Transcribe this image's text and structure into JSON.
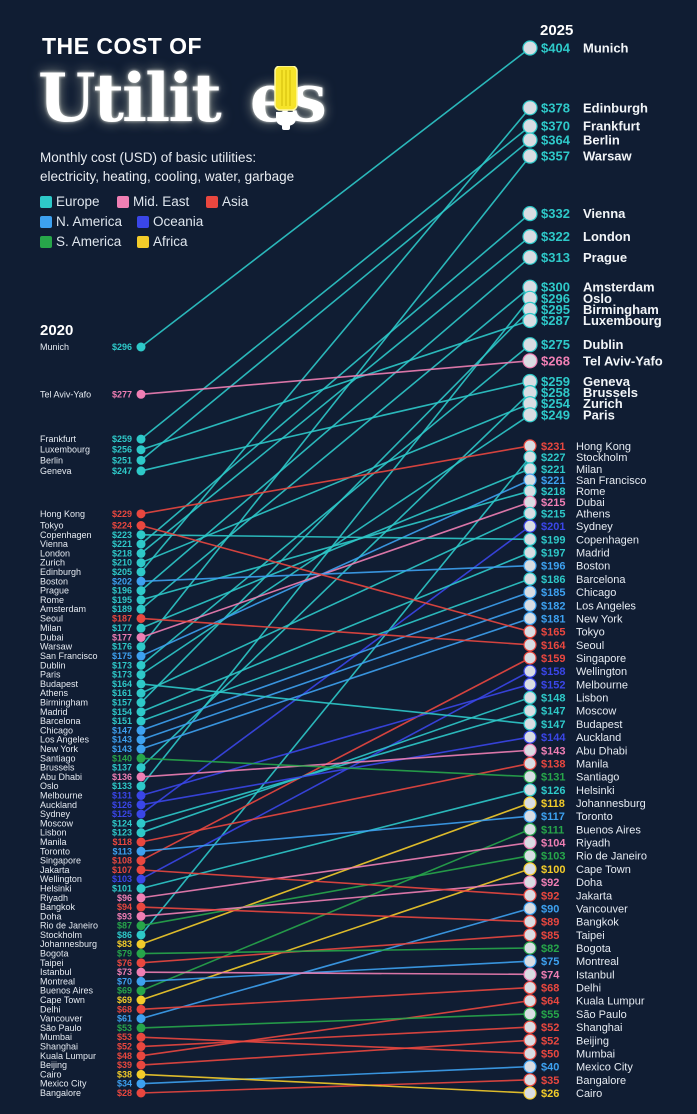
{
  "header": {
    "title_line1": "THE COST OF",
    "title_line2_a": "Utilit",
    "title_line2_b": "es",
    "subtitle_line1": "Monthly cost (USD) of basic utilities:",
    "subtitle_line2": "electricity, heating, cooling, water, garbage"
  },
  "legend": [
    {
      "label": "Europe",
      "key": "Europe"
    },
    {
      "label": "Mid. East",
      "key": "MidEast"
    },
    {
      "label": "Asia",
      "key": "Asia"
    },
    {
      "label": "N. America",
      "key": "NAmerica"
    },
    {
      "label": "Oceania",
      "key": "Oceania"
    },
    {
      "label": "S. America",
      "key": "SAmerica"
    },
    {
      "label": "Africa",
      "key": "Africa"
    }
  ],
  "colors": {
    "Europe": "#2ec9c9",
    "MidEast": "#f07fb4",
    "Asia": "#e9473f",
    "NAmerica": "#3da1f0",
    "Oceania": "#3a46e8",
    "SAmerica": "#27a64a",
    "Africa": "#f3cc2a",
    "background": "#101d33"
  },
  "chart_data": {
    "type": "slope",
    "title": "The Cost of Utilities",
    "subtitle": "Monthly cost (USD) of basic utilities: electricity, heating, cooling, water, garbage",
    "left_label": "2020",
    "right_label": "2025",
    "unit": "$",
    "series": [
      {
        "city": "Munich",
        "region": "Europe",
        "v2020": 296,
        "v2025": 404
      },
      {
        "city": "Edinburgh",
        "region": "Europe",
        "v2020": 205,
        "v2025": 378
      },
      {
        "city": "Frankfurt",
        "region": "Europe",
        "v2020": 259,
        "v2025": 370
      },
      {
        "city": "Berlin",
        "region": "Europe",
        "v2020": 251,
        "v2025": 364
      },
      {
        "city": "Warsaw",
        "region": "Europe",
        "v2020": 176,
        "v2025": 357
      },
      {
        "city": "Vienna",
        "region": "Europe",
        "v2020": 221,
        "v2025": 332
      },
      {
        "city": "London",
        "region": "Europe",
        "v2020": 218,
        "v2025": 322
      },
      {
        "city": "Prague",
        "region": "Europe",
        "v2020": 196,
        "v2025": 313
      },
      {
        "city": "Amsterdam",
        "region": "Europe",
        "v2020": 189,
        "v2025": 300
      },
      {
        "city": "Oslo",
        "region": "Europe",
        "v2020": 133,
        "v2025": 296
      },
      {
        "city": "Birmingham",
        "region": "Europe",
        "v2020": 157,
        "v2025": 295
      },
      {
        "city": "Luxembourg",
        "region": "Europe",
        "v2020": 256,
        "v2025": 287
      },
      {
        "city": "Dublin",
        "region": "Europe",
        "v2020": 173,
        "v2025": 275
      },
      {
        "city": "Tel Aviv-Yafo",
        "region": "MidEast",
        "v2020": 277,
        "v2025": 268
      },
      {
        "city": "Geneva",
        "region": "Europe",
        "v2020": 247,
        "v2025": 259
      },
      {
        "city": "Brussels",
        "region": "Europe",
        "v2020": 137,
        "v2025": 258
      },
      {
        "city": "Zurich",
        "region": "Europe",
        "v2020": 210,
        "v2025": 254
      },
      {
        "city": "Paris",
        "region": "Europe",
        "v2020": 173,
        "v2025": 249
      },
      {
        "city": "Hong Kong",
        "region": "Asia",
        "v2020": 229,
        "v2025": 231
      },
      {
        "city": "Stockholm",
        "region": "Europe",
        "v2020": 86,
        "v2025": 227
      },
      {
        "city": "Milan",
        "region": "Europe",
        "v2020": 177,
        "v2025": 221
      },
      {
        "city": "San Francisco",
        "region": "NAmerica",
        "v2020": 175,
        "v2025": 221
      },
      {
        "city": "Rome",
        "region": "Europe",
        "v2020": 195,
        "v2025": 218
      },
      {
        "city": "Dubai",
        "region": "MidEast",
        "v2020": 177,
        "v2025": 215
      },
      {
        "city": "Athens",
        "region": "Europe",
        "v2020": 161,
        "v2025": 215
      },
      {
        "city": "Sydney",
        "region": "Oceania",
        "v2020": 125,
        "v2025": 201
      },
      {
        "city": "Copenhagen",
        "region": "Europe",
        "v2020": 223,
        "v2025": 199
      },
      {
        "city": "Madrid",
        "region": "Europe",
        "v2020": 154,
        "v2025": 197
      },
      {
        "city": "Boston",
        "region": "NAmerica",
        "v2020": 202,
        "v2025": 196
      },
      {
        "city": "Barcelona",
        "region": "Europe",
        "v2020": 151,
        "v2025": 186
      },
      {
        "city": "Chicago",
        "region": "NAmerica",
        "v2020": 147,
        "v2025": 185
      },
      {
        "city": "Los Angeles",
        "region": "NAmerica",
        "v2020": 143,
        "v2025": 182
      },
      {
        "city": "New York",
        "region": "NAmerica",
        "v2020": 143,
        "v2025": 181
      },
      {
        "city": "Tokyo",
        "region": "Asia",
        "v2020": 224,
        "v2025": 165
      },
      {
        "city": "Seoul",
        "region": "Asia",
        "v2020": 187,
        "v2025": 164
      },
      {
        "city": "Singapore",
        "region": "Asia",
        "v2020": 108,
        "v2025": 159
      },
      {
        "city": "Wellington",
        "region": "Oceania",
        "v2020": 103,
        "v2025": 158
      },
      {
        "city": "Melbourne",
        "region": "Oceania",
        "v2020": 131,
        "v2025": 152
      },
      {
        "city": "Lisbon",
        "region": "Europe",
        "v2020": 123,
        "v2025": 148
      },
      {
        "city": "Moscow",
        "region": "Europe",
        "v2020": 124,
        "v2025": 147
      },
      {
        "city": "Budapest",
        "region": "Europe",
        "v2020": 164,
        "v2025": 147
      },
      {
        "city": "Auckland",
        "region": "Oceania",
        "v2020": 126,
        "v2025": 144
      },
      {
        "city": "Abu Dhabi",
        "region": "MidEast",
        "v2020": 136,
        "v2025": 143
      },
      {
        "city": "Manila",
        "region": "Asia",
        "v2020": 118,
        "v2025": 138
      },
      {
        "city": "Santiago",
        "region": "SAmerica",
        "v2020": 140,
        "v2025": 131
      },
      {
        "city": "Helsinki",
        "region": "Europe",
        "v2020": 101,
        "v2025": 126
      },
      {
        "city": "Johannesburg",
        "region": "Africa",
        "v2020": 83,
        "v2025": 118
      },
      {
        "city": "Toronto",
        "region": "NAmerica",
        "v2020": 113,
        "v2025": 117
      },
      {
        "city": "Buenos Aires",
        "region": "SAmerica",
        "v2020": 69,
        "v2025": 111
      },
      {
        "city": "Riyadh",
        "region": "MidEast",
        "v2020": 96,
        "v2025": 104
      },
      {
        "city": "Rio de Janeiro",
        "region": "SAmerica",
        "v2020": 87,
        "v2025": 103
      },
      {
        "city": "Cape Town",
        "region": "Africa",
        "v2020": 69,
        "v2025": 100
      },
      {
        "city": "Doha",
        "region": "MidEast",
        "v2020": 93,
        "v2025": 92
      },
      {
        "city": "Jakarta",
        "region": "Asia",
        "v2020": 107,
        "v2025": 92
      },
      {
        "city": "Vancouver",
        "region": "NAmerica",
        "v2020": 61,
        "v2025": 90
      },
      {
        "city": "Bangkok",
        "region": "Asia",
        "v2020": 94,
        "v2025": 89
      },
      {
        "city": "Taipei",
        "region": "Asia",
        "v2020": 76,
        "v2025": 85
      },
      {
        "city": "Bogota",
        "region": "SAmerica",
        "v2020": 79,
        "v2025": 82
      },
      {
        "city": "Montreal",
        "region": "NAmerica",
        "v2020": 70,
        "v2025": 75
      },
      {
        "city": "Istanbul",
        "region": "MidEast",
        "v2020": 73,
        "v2025": 74
      },
      {
        "city": "Delhi",
        "region": "Asia",
        "v2020": 68,
        "v2025": 68
      },
      {
        "city": "Kuala Lumpur",
        "region": "Asia",
        "v2020": 48,
        "v2025": 64
      },
      {
        "city": "São Paulo",
        "region": "SAmerica",
        "v2020": 53,
        "v2025": 55
      },
      {
        "city": "Shanghai",
        "region": "Asia",
        "v2020": 52,
        "v2025": 52
      },
      {
        "city": "Beijing",
        "region": "Asia",
        "v2020": 39,
        "v2025": 52
      },
      {
        "city": "Mumbai",
        "region": "Asia",
        "v2020": 53,
        "v2025": 50
      },
      {
        "city": "Mexico City",
        "region": "NAmerica",
        "v2020": 34,
        "v2025": 40
      },
      {
        "city": "Bangalore",
        "region": "Asia",
        "v2020": 28,
        "v2025": 35
      },
      {
        "city": "Cairo",
        "region": "Africa",
        "v2020": 38,
        "v2025": 26
      }
    ]
  }
}
